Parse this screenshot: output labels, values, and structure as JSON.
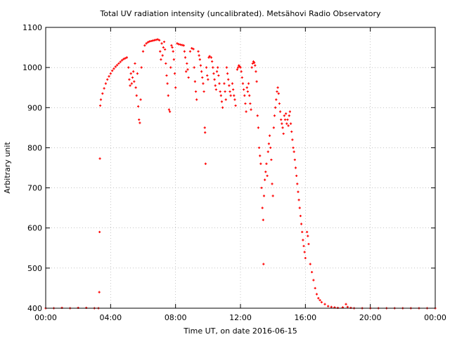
{
  "chart_data": {
    "type": "scatter",
    "title": "Total UV radiation intensity (uncalibrated). Metsähovi Radio Observatory",
    "xlabel": "Time UT, on date 2016-06-15",
    "ylabel": "Arbitrary unit",
    "xlim": [
      0,
      24
    ],
    "ylim": [
      400,
      1100
    ],
    "x_unit": "hours UT",
    "xticks": [
      0,
      4,
      8,
      12,
      16,
      20,
      24
    ],
    "xtick_labels": [
      "00:00",
      "04:00",
      "08:00",
      "12:00",
      "16:00",
      "20:00",
      "00:00"
    ],
    "yticks": [
      400,
      500,
      600,
      700,
      800,
      900,
      1000,
      1100
    ],
    "ytick_labels": [
      "400",
      "500",
      "600",
      "700",
      "800",
      "900",
      "1000",
      "1100"
    ],
    "grid": true,
    "legend": "none",
    "series": [
      {
        "color": "#ff0000",
        "marker": "plus",
        "points": [
          [
            0.0,
            400
          ],
          [
            0.5,
            400
          ],
          [
            1.0,
            401
          ],
          [
            1.5,
            400
          ],
          [
            2.0,
            401
          ],
          [
            2.5,
            401
          ],
          [
            3.0,
            400
          ],
          [
            3.25,
            400
          ],
          [
            3.3,
            440
          ],
          [
            3.32,
            590
          ],
          [
            3.34,
            773
          ],
          [
            3.36,
            905
          ],
          [
            3.4,
            920
          ],
          [
            3.5,
            935
          ],
          [
            3.6,
            948
          ],
          [
            3.7,
            960
          ],
          [
            3.8,
            970
          ],
          [
            3.9,
            978
          ],
          [
            4.0,
            985
          ],
          [
            4.1,
            992
          ],
          [
            4.2,
            997
          ],
          [
            4.3,
            1002
          ],
          [
            4.4,
            1006
          ],
          [
            4.5,
            1010
          ],
          [
            4.6,
            1014
          ],
          [
            4.7,
            1018
          ],
          [
            4.8,
            1021
          ],
          [
            4.9,
            1023
          ],
          [
            5.0,
            1025
          ],
          [
            5.1,
            1000
          ],
          [
            5.15,
            970
          ],
          [
            5.2,
            955
          ],
          [
            5.25,
            985
          ],
          [
            5.3,
            960
          ],
          [
            5.35,
            975
          ],
          [
            5.4,
            990
          ],
          [
            5.45,
            965
          ],
          [
            5.5,
            1010
          ],
          [
            5.55,
            950
          ],
          [
            5.6,
            930
          ],
          [
            5.65,
            985
          ],
          [
            5.7,
            903
          ],
          [
            5.75,
            870
          ],
          [
            5.8,
            862
          ],
          [
            5.85,
            920
          ],
          [
            5.9,
            1000
          ],
          [
            6.0,
            1040
          ],
          [
            6.1,
            1055
          ],
          [
            6.2,
            1060
          ],
          [
            6.3,
            1063
          ],
          [
            6.4,
            1065
          ],
          [
            6.5,
            1066
          ],
          [
            6.6,
            1067
          ],
          [
            6.7,
            1068
          ],
          [
            6.8,
            1069
          ],
          [
            6.9,
            1070
          ],
          [
            7.0,
            1068
          ],
          [
            7.05,
            1040
          ],
          [
            7.1,
            1020
          ],
          [
            7.15,
            1060
          ],
          [
            7.2,
            1030
          ],
          [
            7.25,
            1050
          ],
          [
            7.3,
            1064
          ],
          [
            7.35,
            1045
          ],
          [
            7.4,
            1010
          ],
          [
            7.45,
            980
          ],
          [
            7.5,
            960
          ],
          [
            7.55,
            930
          ],
          [
            7.6,
            895
          ],
          [
            7.65,
            890
          ],
          [
            7.7,
            1000
          ],
          [
            7.75,
            1055
          ],
          [
            7.8,
            1050
          ],
          [
            7.85,
            1040
          ],
          [
            7.9,
            1020
          ],
          [
            7.95,
            985
          ],
          [
            8.0,
            950
          ],
          [
            8.1,
            1060
          ],
          [
            8.2,
            1058
          ],
          [
            8.3,
            1057
          ],
          [
            8.4,
            1056
          ],
          [
            8.5,
            1055
          ],
          [
            8.55,
            1040
          ],
          [
            8.6,
            1025
          ],
          [
            8.65,
            990
          ],
          [
            8.7,
            1010
          ],
          [
            8.75,
            995
          ],
          [
            8.8,
            975
          ],
          [
            8.9,
            1040
          ],
          [
            9.0,
            1048
          ],
          [
            9.1,
            1046
          ],
          [
            9.15,
            1000
          ],
          [
            9.2,
            965
          ],
          [
            9.25,
            940
          ],
          [
            9.3,
            920
          ],
          [
            9.4,
            1040
          ],
          [
            9.45,
            1030
          ],
          [
            9.5,
            1020
          ],
          [
            9.55,
            1005
          ],
          [
            9.6,
            990
          ],
          [
            9.65,
            975
          ],
          [
            9.7,
            960
          ],
          [
            9.75,
            940
          ],
          [
            9.8,
            850
          ],
          [
            9.82,
            838
          ],
          [
            9.85,
            760
          ],
          [
            9.9,
            1000
          ],
          [
            9.95,
            980
          ],
          [
            10.0,
            970
          ],
          [
            10.05,
            1025
          ],
          [
            10.1,
            1028
          ],
          [
            10.2,
            1025
          ],
          [
            10.25,
            1015
          ],
          [
            10.3,
            1000
          ],
          [
            10.35,
            985
          ],
          [
            10.4,
            970
          ],
          [
            10.45,
            955
          ],
          [
            10.5,
            945
          ],
          [
            10.55,
            990
          ],
          [
            10.6,
            1000
          ],
          [
            10.65,
            980
          ],
          [
            10.7,
            960
          ],
          [
            10.75,
            940
          ],
          [
            10.8,
            930
          ],
          [
            10.85,
            915
          ],
          [
            10.9,
            900
          ],
          [
            11.0,
            960
          ],
          [
            11.05,
            940
          ],
          [
            11.1,
            920
          ],
          [
            11.15,
            1000
          ],
          [
            11.2,
            985
          ],
          [
            11.25,
            970
          ],
          [
            11.3,
            955
          ],
          [
            11.35,
            940
          ],
          [
            11.4,
            930
          ],
          [
            11.5,
            960
          ],
          [
            11.55,
            945
          ],
          [
            11.6,
            930
          ],
          [
            11.65,
            920
          ],
          [
            11.7,
            905
          ],
          [
            11.8,
            995
          ],
          [
            11.85,
            1000
          ],
          [
            11.9,
            1005
          ],
          [
            11.95,
            1003
          ],
          [
            12.0,
            1000
          ],
          [
            12.05,
            990
          ],
          [
            12.1,
            975
          ],
          [
            12.15,
            960
          ],
          [
            12.2,
            945
          ],
          [
            12.25,
            930
          ],
          [
            12.3,
            910
          ],
          [
            12.35,
            890
          ],
          [
            12.4,
            950
          ],
          [
            12.45,
            940
          ],
          [
            12.5,
            960
          ],
          [
            12.55,
            930
          ],
          [
            12.6,
            910
          ],
          [
            12.65,
            895
          ],
          [
            12.7,
            1000
          ],
          [
            12.75,
            1010
          ],
          [
            12.8,
            1015
          ],
          [
            12.85,
            1012
          ],
          [
            12.9,
            1005
          ],
          [
            12.95,
            990
          ],
          [
            13.0,
            965
          ],
          [
            13.05,
            880
          ],
          [
            13.1,
            850
          ],
          [
            13.15,
            800
          ],
          [
            13.2,
            780
          ],
          [
            13.25,
            760
          ],
          [
            13.3,
            700
          ],
          [
            13.35,
            650
          ],
          [
            13.4,
            620
          ],
          [
            13.42,
            510
          ],
          [
            13.45,
            680
          ],
          [
            13.5,
            720
          ],
          [
            13.55,
            740
          ],
          [
            13.6,
            760
          ],
          [
            13.65,
            730
          ],
          [
            13.7,
            790
          ],
          [
            13.75,
            810
          ],
          [
            13.8,
            830
          ],
          [
            13.85,
            800
          ],
          [
            13.9,
            770
          ],
          [
            13.95,
            710
          ],
          [
            14.0,
            680
          ],
          [
            14.05,
            850
          ],
          [
            14.1,
            880
          ],
          [
            14.15,
            900
          ],
          [
            14.2,
            920
          ],
          [
            14.25,
            940
          ],
          [
            14.3,
            950
          ],
          [
            14.35,
            935
          ],
          [
            14.4,
            910
          ],
          [
            14.45,
            890
          ],
          [
            14.5,
            870
          ],
          [
            14.55,
            860
          ],
          [
            14.6,
            850
          ],
          [
            14.65,
            835
          ],
          [
            14.7,
            880
          ],
          [
            14.75,
            870
          ],
          [
            14.8,
            885
          ],
          [
            14.85,
            860
          ],
          [
            14.9,
            870
          ],
          [
            14.95,
            855
          ],
          [
            15.0,
            880
          ],
          [
            15.05,
            890
          ],
          [
            15.1,
            860
          ],
          [
            15.15,
            840
          ],
          [
            15.2,
            820
          ],
          [
            15.25,
            800
          ],
          [
            15.3,
            790
          ],
          [
            15.35,
            770
          ],
          [
            15.4,
            750
          ],
          [
            15.45,
            730
          ],
          [
            15.5,
            710
          ],
          [
            15.55,
            690
          ],
          [
            15.6,
            670
          ],
          [
            15.65,
            650
          ],
          [
            15.7,
            630
          ],
          [
            15.75,
            610
          ],
          [
            15.8,
            590
          ],
          [
            15.85,
            570
          ],
          [
            15.9,
            555
          ],
          [
            15.95,
            540
          ],
          [
            16.0,
            525
          ],
          [
            16.1,
            590
          ],
          [
            16.15,
            580
          ],
          [
            16.2,
            560
          ],
          [
            16.3,
            510
          ],
          [
            16.4,
            490
          ],
          [
            16.5,
            470
          ],
          [
            16.6,
            450
          ],
          [
            16.7,
            435
          ],
          [
            16.8,
            425
          ],
          [
            16.9,
            420
          ],
          [
            17.0,
            415
          ],
          [
            17.2,
            410
          ],
          [
            17.4,
            405
          ],
          [
            17.6,
            403
          ],
          [
            17.8,
            402
          ],
          [
            18.0,
            401
          ],
          [
            18.3,
            402
          ],
          [
            18.5,
            410
          ],
          [
            18.6,
            403
          ],
          [
            18.8,
            401
          ],
          [
            19.0,
            400
          ],
          [
            19.5,
            400
          ],
          [
            20.0,
            400
          ],
          [
            20.5,
            400
          ],
          [
            21.0,
            400
          ],
          [
            21.5,
            400
          ],
          [
            22.0,
            400
          ],
          [
            22.5,
            400
          ],
          [
            23.0,
            400
          ],
          [
            23.5,
            400
          ],
          [
            24.0,
            400
          ]
        ]
      }
    ]
  }
}
